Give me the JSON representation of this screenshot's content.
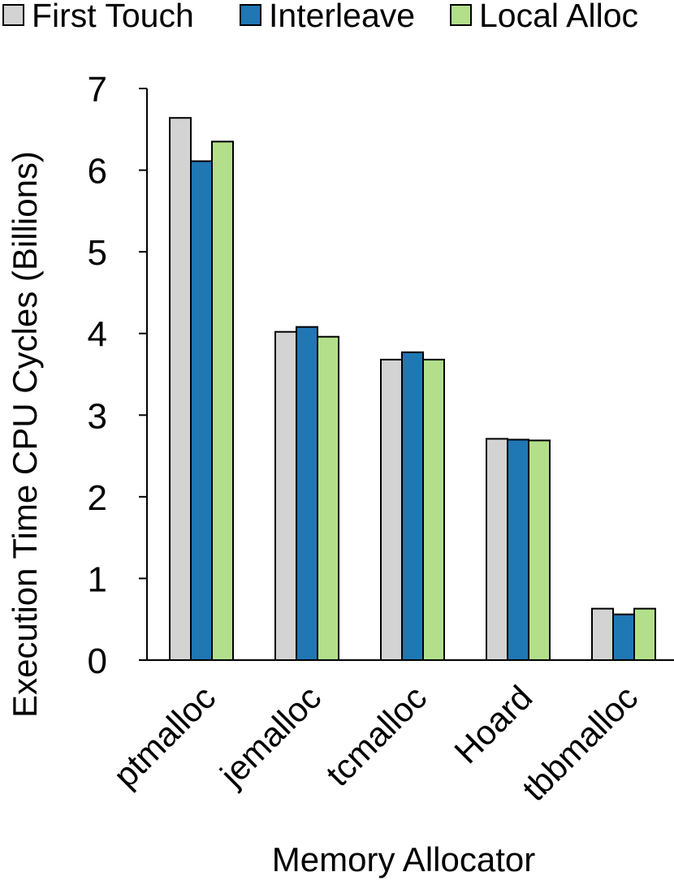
{
  "chart_data": {
    "type": "bar",
    "title": "",
    "xlabel": "Memory Allocator",
    "ylabel": "Execution Time CPU Cycles (Billions)",
    "ylim": [
      0,
      7
    ],
    "yticks": [
      0,
      1,
      2,
      3,
      4,
      5,
      6,
      7
    ],
    "grid": false,
    "legend_position": "top",
    "categories": [
      "ptmalloc",
      "jemalloc",
      "tcmalloc",
      "Hoard",
      "tbbmalloc"
    ],
    "series": [
      {
        "name": "First Touch",
        "color": "#d3d3d3",
        "values": [
          6.64,
          4.02,
          3.68,
          2.71,
          0.63
        ]
      },
      {
        "name": "Interleave",
        "color": "#1f77b4",
        "values": [
          6.11,
          4.08,
          3.77,
          2.7,
          0.56
        ]
      },
      {
        "name": "Local Alloc",
        "color": "#b3df8a",
        "values": [
          6.35,
          3.96,
          3.68,
          2.69,
          0.63
        ]
      }
    ]
  }
}
